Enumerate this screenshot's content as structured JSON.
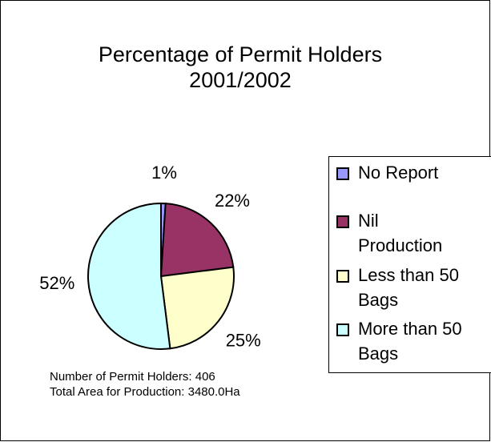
{
  "chart_data": {
    "type": "pie",
    "title": [
      "Percentage of Permit Holders",
      "2001/2002"
    ],
    "categories": [
      "No Report",
      "Nil Production",
      "Less than 50 Bags",
      "More than 50 Bags"
    ],
    "values": [
      1,
      22,
      25,
      52
    ],
    "value_labels": [
      "1%",
      "22%",
      "25%",
      "52%"
    ],
    "colors": [
      "#9999ff",
      "#993366",
      "#ffffcc",
      "#ccffff"
    ],
    "legend": "right",
    "annotations": [
      "Number of Permit Holders: 406",
      "Total Area for Production: 3480.0Ha"
    ]
  }
}
